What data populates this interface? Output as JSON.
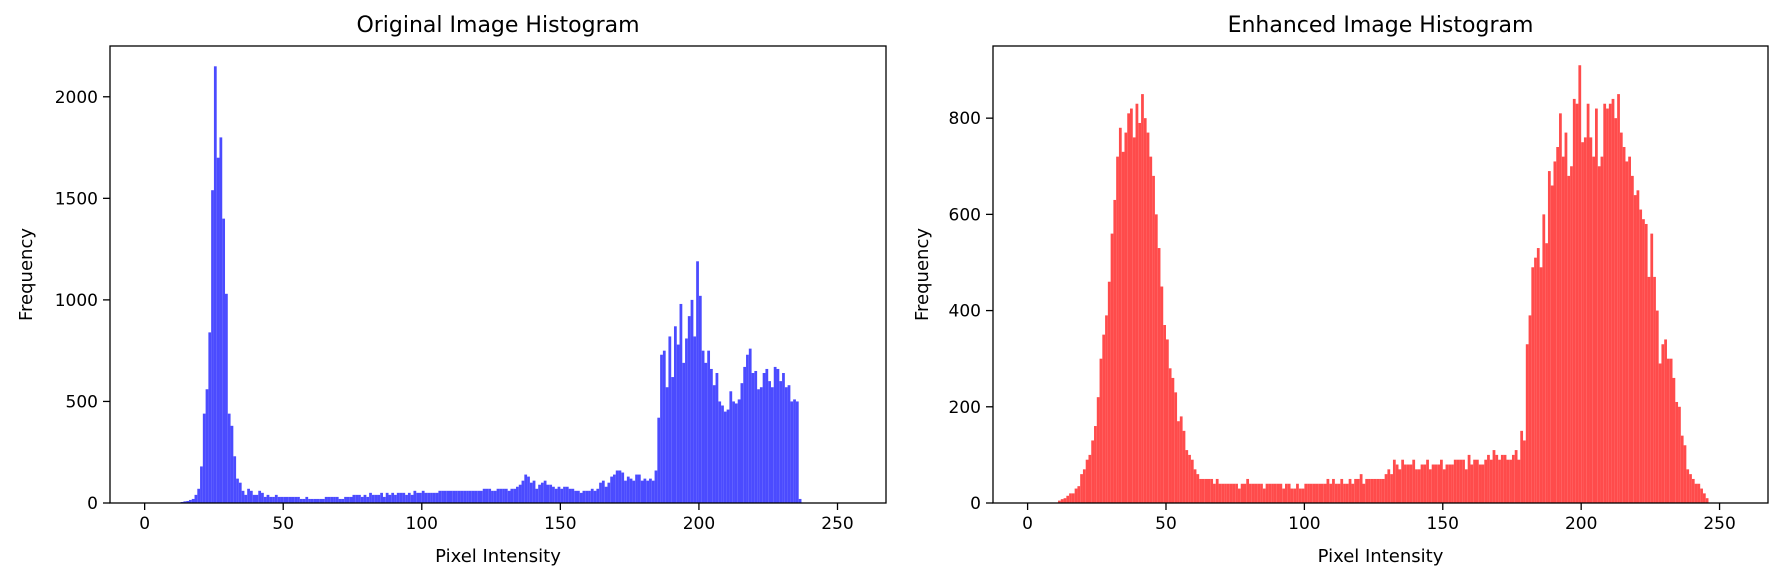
{
  "chart_data": [
    {
      "type": "bar",
      "title": "Original Image Histogram",
      "xlabel": "Pixel Intensity",
      "ylabel": "Frequency",
      "xlim": [
        -12.5,
        267.5
      ],
      "ylim": [
        0,
        2250
      ],
      "xticks": [
        0,
        50,
        100,
        150,
        200,
        250
      ],
      "yticks": [
        0,
        500,
        1000,
        1500,
        2000
      ],
      "grid": false,
      "color": "#4b4bff",
      "series": [
        {
          "bins_start": 0,
          "bin_width": 1,
          "values": [
            0,
            0,
            0,
            0,
            0,
            0,
            0,
            0,
            0,
            0,
            0,
            0,
            0,
            5,
            8,
            10,
            15,
            20,
            40,
            70,
            180,
            440,
            560,
            840,
            1540,
            2150,
            1700,
            1800,
            1400,
            1030,
            440,
            380,
            230,
            120,
            100,
            60,
            40,
            70,
            60,
            40,
            40,
            60,
            50,
            30,
            40,
            30,
            30,
            40,
            30,
            30,
            30,
            30,
            30,
            30,
            30,
            30,
            20,
            20,
            30,
            20,
            20,
            20,
            20,
            20,
            20,
            30,
            30,
            30,
            30,
            30,
            20,
            20,
            30,
            30,
            30,
            40,
            40,
            40,
            30,
            40,
            30,
            50,
            40,
            40,
            40,
            50,
            30,
            50,
            40,
            50,
            40,
            50,
            50,
            50,
            40,
            50,
            40,
            60,
            50,
            50,
            60,
            50,
            50,
            50,
            50,
            50,
            60,
            60,
            60,
            60,
            60,
            60,
            60,
            60,
            60,
            60,
            60,
            60,
            60,
            60,
            60,
            60,
            70,
            70,
            70,
            60,
            60,
            70,
            70,
            70,
            70,
            60,
            70,
            70,
            80,
            90,
            110,
            140,
            130,
            100,
            110,
            70,
            90,
            100,
            110,
            90,
            90,
            80,
            70,
            80,
            70,
            80,
            80,
            70,
            70,
            60,
            60,
            50,
            60,
            60,
            60,
            70,
            60,
            70,
            100,
            110,
            80,
            100,
            130,
            140,
            160,
            160,
            150,
            110,
            130,
            120,
            110,
            140,
            140,
            110,
            120,
            110,
            120,
            110,
            160,
            420,
            730,
            750,
            570,
            820,
            620,
            870,
            780,
            980,
            690,
            810,
            920,
            1000,
            820,
            1190,
            1020,
            750,
            690,
            750,
            660,
            580,
            640,
            500,
            480,
            450,
            460,
            550,
            500,
            490,
            510,
            590,
            670,
            730,
            760,
            640,
            650,
            560,
            570,
            640,
            660,
            600,
            570,
            670,
            660,
            600,
            640,
            570,
            580,
            500,
            510,
            500,
            20,
            0,
            0,
            0,
            0,
            0,
            0,
            0,
            0,
            0,
            0,
            0,
            0,
            0,
            0,
            0,
            0,
            0,
            0,
            0
          ]
        }
      ]
    },
    {
      "type": "bar",
      "title": "Enhanced Image Histogram",
      "xlabel": "Pixel Intensity",
      "ylabel": "Frequency",
      "xlim": [
        -12.5,
        267.5
      ],
      "ylim": [
        0,
        950
      ],
      "xticks": [
        0,
        50,
        100,
        150,
        200,
        250
      ],
      "yticks": [
        0,
        200,
        400,
        600,
        800
      ],
      "grid": false,
      "color": "#ff4b4b",
      "series": [
        {
          "bins_start": 0,
          "bin_width": 1,
          "values": [
            0,
            0,
            0,
            0,
            0,
            0,
            0,
            0,
            0,
            0,
            0,
            5,
            8,
            10,
            15,
            20,
            20,
            30,
            35,
            60,
            70,
            90,
            100,
            130,
            160,
            220,
            300,
            350,
            390,
            460,
            560,
            630,
            720,
            780,
            730,
            770,
            810,
            820,
            760,
            830,
            790,
            850,
            800,
            770,
            720,
            680,
            600,
            530,
            450,
            370,
            340,
            280,
            260,
            230,
            170,
            180,
            150,
            110,
            100,
            90,
            70,
            60,
            50,
            50,
            50,
            50,
            50,
            40,
            50,
            40,
            40,
            40,
            40,
            40,
            40,
            40,
            30,
            40,
            40,
            50,
            40,
            40,
            40,
            40,
            40,
            30,
            40,
            40,
            40,
            40,
            40,
            40,
            30,
            40,
            40,
            30,
            30,
            40,
            30,
            30,
            40,
            40,
            40,
            40,
            40,
            40,
            40,
            40,
            50,
            40,
            50,
            40,
            40,
            50,
            40,
            40,
            50,
            40,
            50,
            50,
            60,
            40,
            50,
            50,
            50,
            50,
            50,
            50,
            50,
            60,
            70,
            60,
            90,
            80,
            70,
            90,
            80,
            80,
            80,
            90,
            70,
            70,
            80,
            80,
            90,
            70,
            80,
            80,
            80,
            90,
            70,
            80,
            80,
            80,
            90,
            90,
            90,
            90,
            70,
            100,
            80,
            90,
            90,
            80,
            80,
            90,
            100,
            90,
            110,
            100,
            90,
            100,
            100,
            90,
            90,
            100,
            110,
            90,
            150,
            130,
            330,
            390,
            490,
            510,
            530,
            490,
            600,
            540,
            690,
            660,
            710,
            740,
            810,
            720,
            770,
            680,
            700,
            840,
            830,
            910,
            750,
            760,
            830,
            760,
            720,
            820,
            700,
            720,
            830,
            820,
            830,
            840,
            800,
            850,
            770,
            740,
            710,
            720,
            680,
            640,
            650,
            610,
            590,
            580,
            470,
            560,
            470,
            400,
            290,
            330,
            340,
            300,
            300,
            260,
            210,
            200,
            140,
            120,
            70,
            60,
            50,
            40,
            40,
            30,
            20,
            10,
            0,
            0,
            0,
            0,
            0,
            0,
            0,
            0,
            0,
            0
          ]
        }
      ]
    }
  ]
}
